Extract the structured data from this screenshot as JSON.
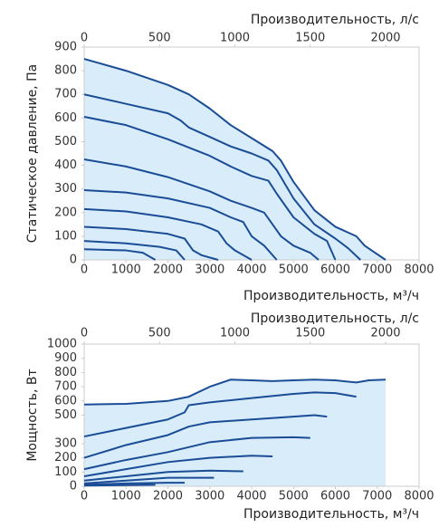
{
  "chart_data": [
    {
      "type": "line",
      "title": "Производительность, л/с",
      "xlabel": "Производительность, м³/ч",
      "ylabel": "Статическое давление, Па",
      "xlim": [
        0,
        8000
      ],
      "xticks": [
        0,
        1000,
        2000,
        3000,
        4000,
        5000,
        6000,
        7000,
        8000
      ],
      "x2lim": [
        0,
        2222
      ],
      "x2ticks": [
        0,
        500,
        1000,
        1500,
        2000
      ],
      "ylim": [
        0,
        900
      ],
      "yticks": [
        0,
        100,
        200,
        300,
        400,
        500,
        600,
        700,
        800,
        900
      ],
      "fill_color": "#d9ecfa",
      "series": [
        {
          "color": "#1a4d96",
          "x": [
            0,
            1000,
            2000,
            2500,
            3000,
            3500,
            4000,
            4500,
            4700,
            5000,
            5500,
            6000,
            6500,
            6700,
            7200
          ],
          "values": [
            850,
            800,
            740,
            700,
            640,
            570,
            515,
            460,
            420,
            330,
            210,
            140,
            100,
            60,
            0
          ]
        },
        {
          "color": "#1a4d96",
          "x": [
            0,
            1000,
            2000,
            2300,
            2500,
            3000,
            3500,
            4000,
            4400,
            4600,
            5000,
            5500,
            6000,
            6300,
            6600
          ],
          "values": [
            700,
            660,
            620,
            590,
            560,
            520,
            480,
            450,
            420,
            380,
            260,
            150,
            90,
            50,
            0
          ]
        },
        {
          "color": "#1a4d96",
          "x": [
            0,
            1000,
            2000,
            3000,
            3500,
            4000,
            4400,
            4600,
            5000,
            5500,
            5800,
            6000
          ],
          "values": [
            605,
            570,
            510,
            440,
            395,
            355,
            335,
            280,
            180,
            110,
            80,
            0
          ]
        },
        {
          "color": "#1a4d96",
          "x": [
            0,
            1000,
            2000,
            3000,
            3500,
            4000,
            4300,
            4500,
            4700,
            5000,
            5400,
            5600
          ],
          "values": [
            425,
            395,
            350,
            290,
            250,
            220,
            200,
            150,
            100,
            60,
            30,
            0
          ]
        },
        {
          "color": "#1a4d96",
          "x": [
            0,
            1000,
            2000,
            3000,
            3500,
            3800,
            4000,
            4300,
            4600
          ],
          "values": [
            295,
            285,
            260,
            220,
            180,
            160,
            100,
            60,
            0
          ]
        },
        {
          "color": "#1a4d96",
          "x": [
            0,
            1000,
            2000,
            2800,
            3200,
            3400,
            3600,
            4000
          ],
          "values": [
            215,
            205,
            180,
            150,
            120,
            70,
            40,
            0
          ]
        },
        {
          "color": "#1a4d96",
          "x": [
            0,
            1000,
            2000,
            2400,
            2600,
            2800,
            3200
          ],
          "values": [
            140,
            130,
            110,
            90,
            40,
            20,
            0
          ]
        },
        {
          "color": "#1a4d96",
          "x": [
            0,
            1000,
            1800,
            2200,
            2400
          ],
          "values": [
            80,
            70,
            55,
            40,
            0
          ]
        },
        {
          "color": "#1a4d96",
          "x": [
            0,
            1000,
            1400,
            1700
          ],
          "values": [
            45,
            40,
            30,
            0
          ]
        }
      ]
    },
    {
      "type": "line",
      "title": "Производительность, л/с",
      "xlabel": "Производительность, м³/ч",
      "ylabel": "Мощность, Вт",
      "xlim": [
        0,
        8000
      ],
      "xticks": [
        0,
        1000,
        2000,
        3000,
        4000,
        5000,
        6000,
        7000,
        8000
      ],
      "x2lim": [
        0,
        2222
      ],
      "x2ticks": [
        0,
        500,
        1000,
        1500,
        2000
      ],
      "ylim": [
        0,
        1000
      ],
      "yticks": [
        0,
        100,
        200,
        300,
        500,
        600,
        700,
        800,
        900,
        1000
      ],
      "fill_color": "#d9ecfa",
      "series": [
        {
          "color": "#1a4d96",
          "x": [
            0,
            1000,
            2000,
            2500,
            3000,
            3500,
            4000,
            4500,
            5000,
            5500,
            6000,
            6500,
            6800,
            7200
          ],
          "values": [
            575,
            580,
            600,
            630,
            700,
            750,
            745,
            740,
            745,
            750,
            745,
            730,
            745,
            750
          ]
        },
        {
          "color": "#1a4d96",
          "x": [
            0,
            1000,
            2000,
            2400,
            2500,
            3000,
            4000,
            5000,
            5500,
            6000,
            6500
          ],
          "values": [
            350,
            410,
            470,
            520,
            570,
            590,
            620,
            650,
            660,
            655,
            630
          ]
        },
        {
          "color": "#1a4d96",
          "x": [
            0,
            1000,
            2000,
            2500,
            3000,
            4000,
            5000,
            5500,
            5800
          ],
          "values": [
            200,
            290,
            360,
            420,
            450,
            470,
            490,
            500,
            490
          ]
        },
        {
          "color": "#1a4d96",
          "x": [
            0,
            1000,
            2000,
            3000,
            4000,
            5000,
            5400
          ],
          "values": [
            120,
            185,
            240,
            310,
            340,
            345,
            340
          ]
        },
        {
          "color": "#1a4d96",
          "x": [
            0,
            1000,
            2000,
            3000,
            4000,
            4500
          ],
          "values": [
            70,
            120,
            170,
            200,
            215,
            210
          ]
        },
        {
          "color": "#1a4d96",
          "x": [
            0,
            1000,
            2000,
            3000,
            3800
          ],
          "values": [
            40,
            70,
            100,
            110,
            105
          ]
        },
        {
          "color": "#1a4d96",
          "x": [
            0,
            1000,
            2000,
            3100
          ],
          "values": [
            20,
            40,
            60,
            60
          ]
        },
        {
          "color": "#1a4d96",
          "x": [
            0,
            1000,
            2000,
            2400
          ],
          "values": [
            10,
            20,
            25,
            25
          ]
        },
        {
          "color": "#1a4d96",
          "x": [
            0,
            1000,
            1700
          ],
          "values": [
            5,
            8,
            10
          ]
        }
      ]
    }
  ]
}
